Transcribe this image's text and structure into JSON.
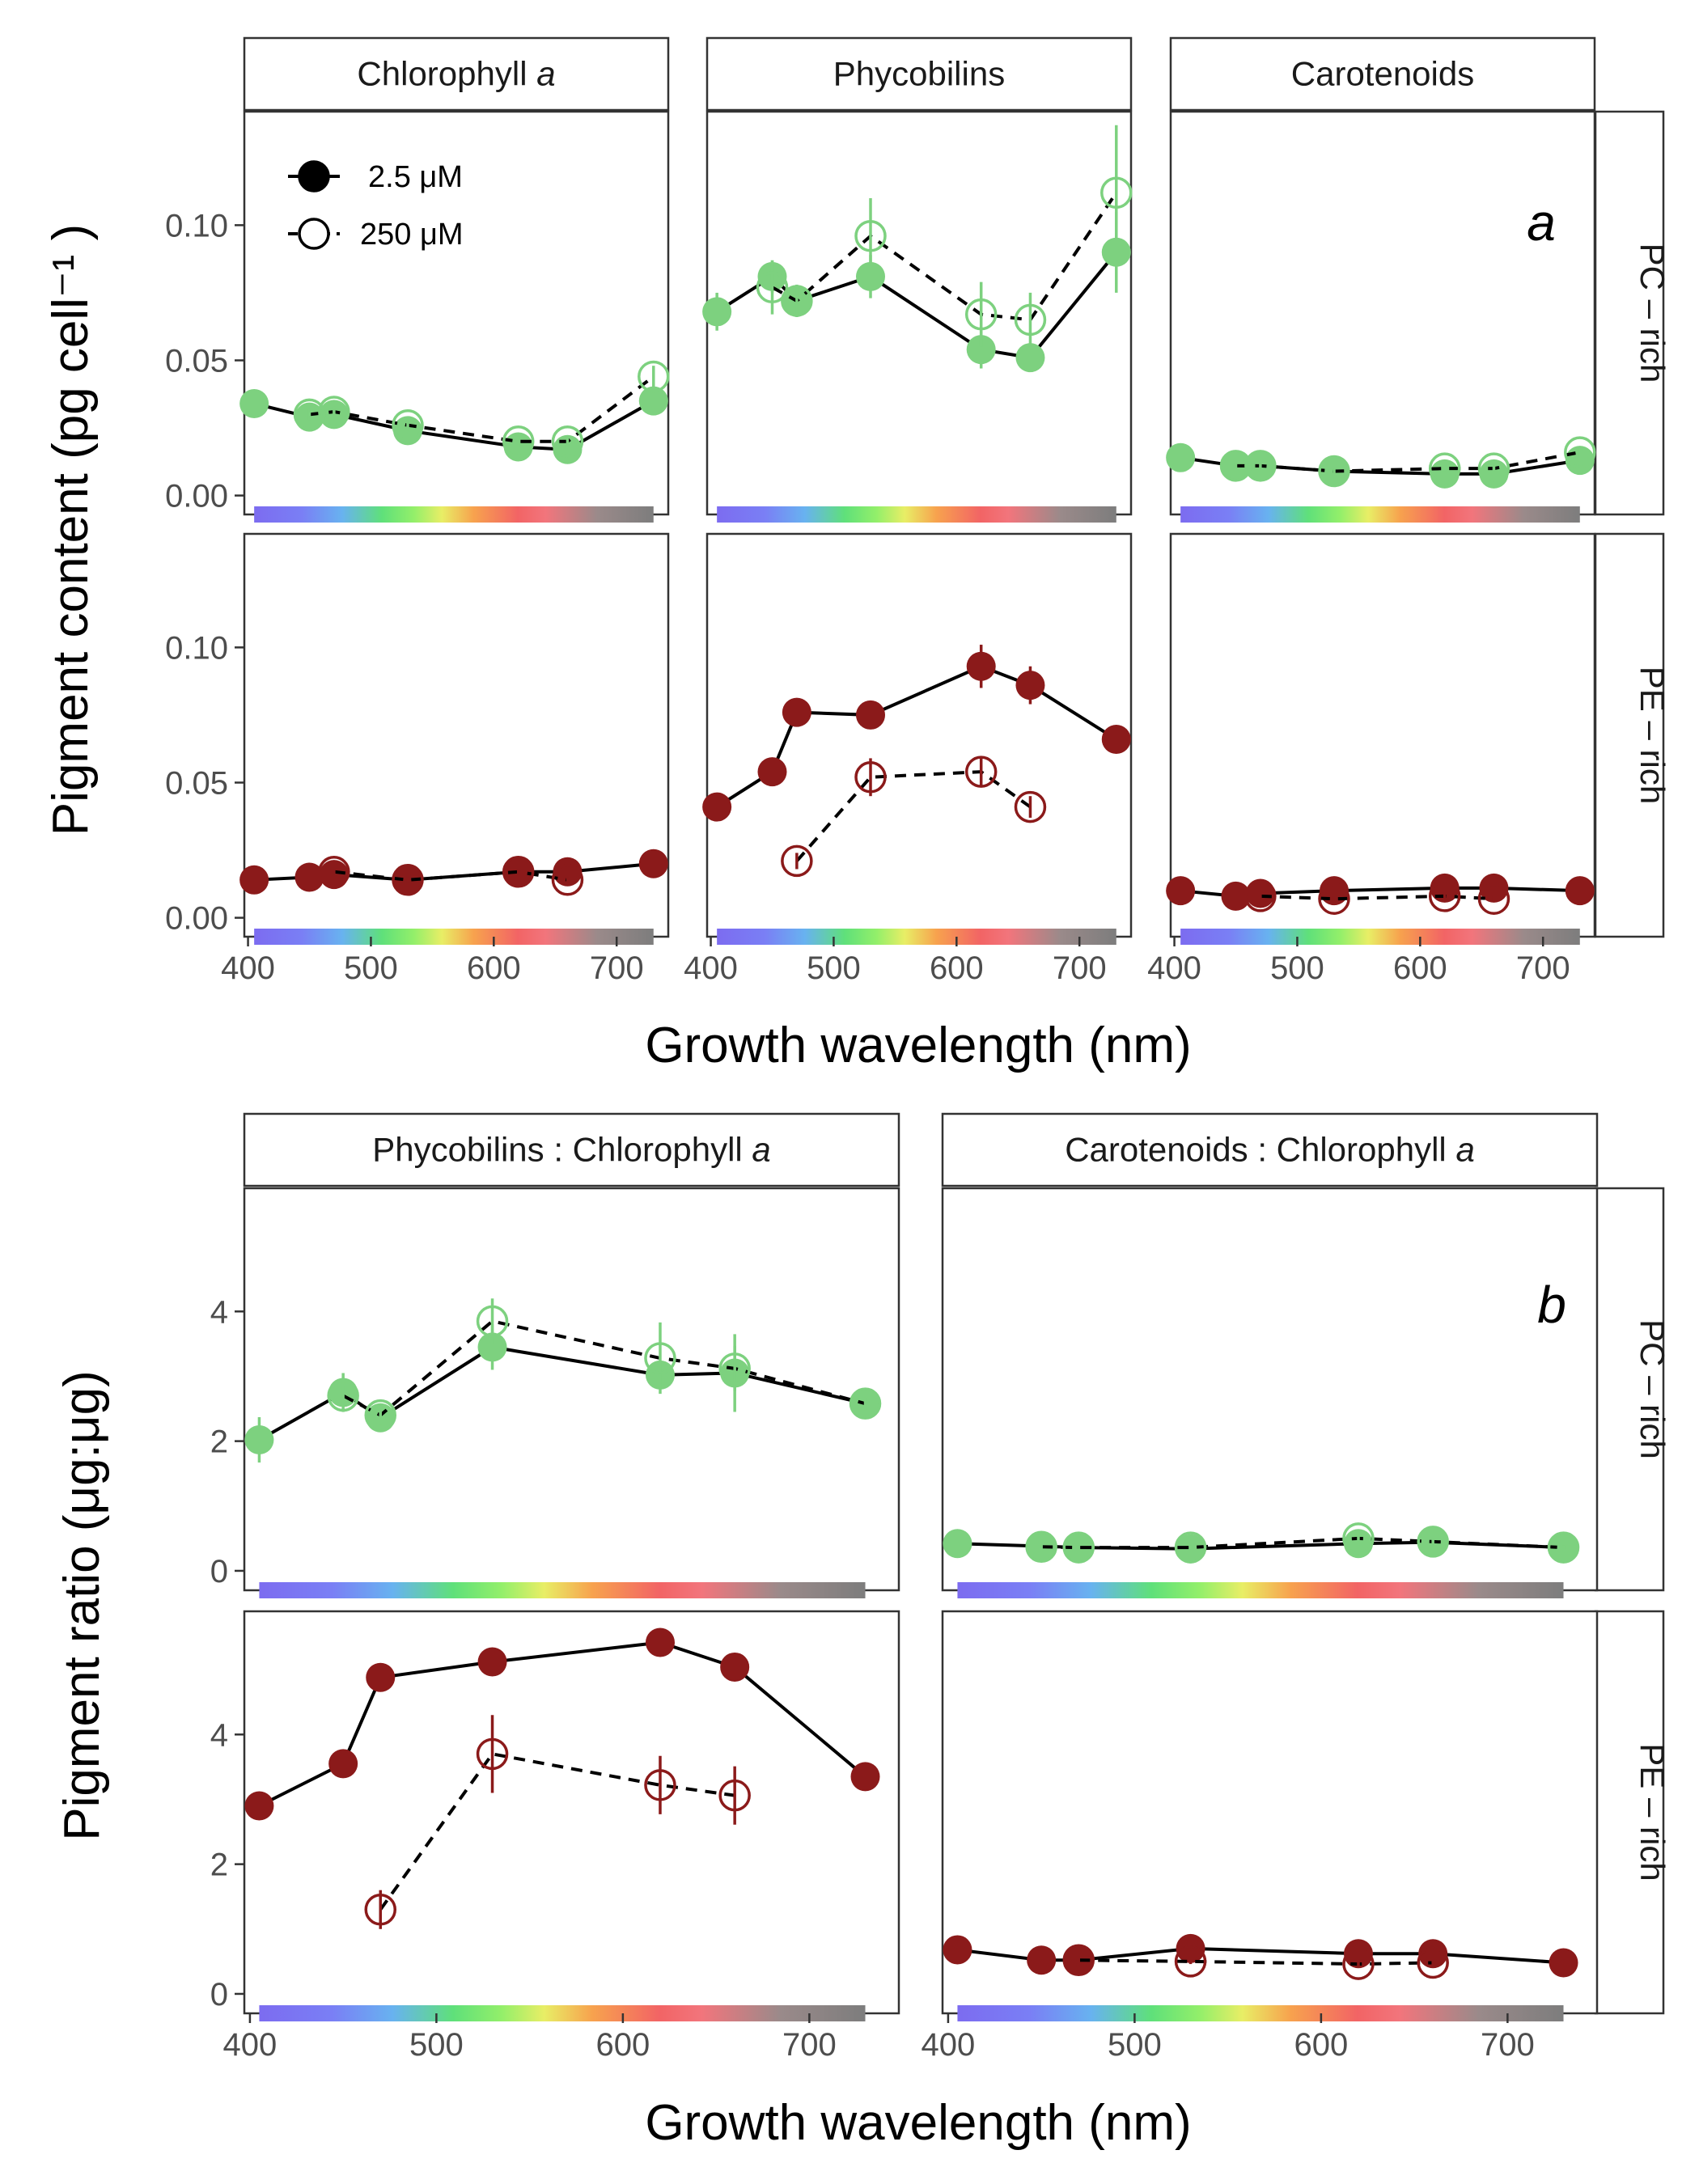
{
  "chart_data": [
    {
      "figure_part": "a",
      "type": "scatter",
      "subtype": "faceted point-and-line with error bars",
      "xlabel": "Growth wavelength (nm)",
      "ylabel": "Pigment content  (pg cell⁻¹ )",
      "x_ticks": [
        400,
        500,
        600,
        700
      ],
      "xlim": [
        397,
        742
      ],
      "ylim": [
        -0.007,
        0.142
      ],
      "y_ticks": [
        0.0,
        0.05,
        0.1
      ],
      "y_tick_labels": [
        "0.00",
        "0.05",
        "0.10"
      ],
      "columns": [
        "Chlorophyll a",
        "Phycobilins",
        "Carotenoids"
      ],
      "rows": [
        "PC – rich",
        "PE – rich"
      ],
      "panel_tag": "a",
      "legend": {
        "placement": "inside top-left of first panel",
        "entries": [
          {
            "label": "2.5 μM",
            "marker": "filled circle",
            "line": "solid"
          },
          {
            "label": "250 μM",
            "marker": "open circle",
            "line": "dashed"
          }
        ]
      },
      "colors": {
        "PC – rich": "#7dd17f",
        "PE – rich": "#8b1a1a"
      },
      "panels": [
        {
          "column": "Chlorophyll a",
          "row": "PC – rich",
          "series": [
            {
              "name": "2.5 μM",
              "x": [
                405,
                450,
                470,
                530,
                620,
                660,
                730
              ],
              "y": [
                0.034,
                0.029,
                0.03,
                0.024,
                0.018,
                0.017,
                0.035
              ],
              "err": [
                0.002,
                0.002,
                0.002,
                0.002,
                0.002,
                0.002,
                0.002
              ]
            },
            {
              "name": "250 μM",
              "x": [
                450,
                470,
                530,
                620,
                660,
                730
              ],
              "y": [
                0.03,
                0.031,
                0.026,
                0.02,
                0.02,
                0.044
              ],
              "err": [
                0.002,
                0.002,
                0.002,
                0.002,
                0.002,
                0.004
              ]
            }
          ]
        },
        {
          "column": "Phycobilins",
          "row": "PC – rich",
          "series": [
            {
              "name": "2.5 μM",
              "x": [
                405,
                450,
                470,
                530,
                620,
                660,
                730
              ],
              "y": [
                0.068,
                0.081,
                0.072,
                0.081,
                0.054,
                0.051,
                0.09
              ],
              "err": [
                0.007,
                0.006,
                0.005,
                0.008,
                0.007,
                0.005,
                0.015
              ]
            },
            {
              "name": "250 μM",
              "x": [
                450,
                470,
                530,
                620,
                660,
                730
              ],
              "y": [
                0.077,
                0.072,
                0.096,
                0.067,
                0.065,
                0.112
              ],
              "err": [
                0.01,
                0.006,
                0.014,
                0.012,
                0.01,
                0.025
              ]
            }
          ]
        },
        {
          "column": "Carotenoids",
          "row": "PC – rich",
          "series": [
            {
              "name": "2.5 μM",
              "x": [
                405,
                450,
                470,
                530,
                620,
                660,
                730
              ],
              "y": [
                0.014,
                0.011,
                0.011,
                0.009,
                0.008,
                0.008,
                0.013
              ],
              "err": [
                0.001,
                0.001,
                0.001,
                0.001,
                0.001,
                0.001,
                0.001
              ]
            },
            {
              "name": "250 μM",
              "x": [
                450,
                470,
                530,
                620,
                660,
                730
              ],
              "y": [
                0.011,
                0.011,
                0.009,
                0.01,
                0.01,
                0.016
              ],
              "err": [
                0.001,
                0.001,
                0.001,
                0.001,
                0.001,
                0.002
              ]
            }
          ]
        },
        {
          "column": "Chlorophyll a",
          "row": "PE – rich",
          "series": [
            {
              "name": "2.5 μM",
              "x": [
                405,
                450,
                470,
                530,
                620,
                660,
                730
              ],
              "y": [
                0.014,
                0.015,
                0.016,
                0.014,
                0.017,
                0.017,
                0.02
              ],
              "err": [
                0.001,
                0.001,
                0.001,
                0.001,
                0.001,
                0.001,
                0.001
              ]
            },
            {
              "name": "250 μM",
              "x": [
                470,
                530,
                620,
                660
              ],
              "y": [
                0.017,
                0.014,
                0.017,
                0.014
              ],
              "err": [
                0.001,
                0.001,
                0.001,
                0.001
              ]
            }
          ]
        },
        {
          "column": "Phycobilins",
          "row": "PE – rich",
          "series": [
            {
              "name": "2.5 μM",
              "x": [
                405,
                450,
                470,
                530,
                620,
                660,
                730
              ],
              "y": [
                0.041,
                0.054,
                0.076,
                0.075,
                0.093,
                0.086,
                0.066
              ],
              "err": [
                0.002,
                0.003,
                0.003,
                0.004,
                0.008,
                0.007,
                0.003
              ]
            },
            {
              "name": "250 μM",
              "x": [
                470,
                530,
                620,
                660
              ],
              "y": [
                0.021,
                0.052,
                0.054,
                0.041
              ],
              "err": [
                0.003,
                0.007,
                0.005,
                0.004
              ]
            }
          ]
        },
        {
          "column": "Carotenoids",
          "row": "PE – rich",
          "series": [
            {
              "name": "2.5 μM",
              "x": [
                405,
                450,
                470,
                530,
                620,
                660,
                730
              ],
              "y": [
                0.01,
                0.008,
                0.009,
                0.01,
                0.011,
                0.011,
                0.01
              ],
              "err": [
                0.001,
                0.001,
                0.001,
                0.001,
                0.001,
                0.001,
                0.001
              ]
            },
            {
              "name": "250 μM",
              "x": [
                470,
                530,
                620,
                660
              ],
              "y": [
                0.008,
                0.007,
                0.008,
                0.007
              ],
              "err": [
                0.001,
                0.001,
                0.001,
                0.001
              ]
            }
          ]
        }
      ]
    },
    {
      "figure_part": "b",
      "type": "scatter",
      "subtype": "faceted point-and-line with error bars",
      "xlabel": "Growth wavelength (nm)",
      "ylabel": "Pigment ratio (μg:μg)",
      "x_ticks": [
        400,
        500,
        600,
        700
      ],
      "xlim": [
        397,
        748
      ],
      "y_ticks": [
        0,
        2,
        4
      ],
      "rows": [
        "PC – rich",
        "PE – rich"
      ],
      "row_ylim": {
        "PC – rich": [
          -0.3,
          5.9
        ],
        "PE – rich": [
          -0.3,
          5.9
        ]
      },
      "columns": [
        "Phycobilins : Chlorophyll a",
        "Carotenoids : Chlorophyll a"
      ],
      "panel_tag": "b",
      "colors": {
        "PC – rich": "#7dd17f",
        "PE – rich": "#8b1a1a"
      },
      "panels": [
        {
          "column": "Phycobilins : Chlorophyll a",
          "row": "PC – rich",
          "series": [
            {
              "name": "2.5 μM",
              "x": [
                405,
                450,
                470,
                530,
                620,
                660,
                730
              ],
              "y": [
                2.02,
                2.75,
                2.36,
                3.45,
                3.02,
                3.05,
                2.58
              ],
              "err": [
                0.35,
                0.3,
                0.15,
                0.35,
                0.2,
                0.6,
                0.1
              ]
            },
            {
              "name": "250 μM",
              "x": [
                450,
                470,
                530,
                620,
                660,
                730
              ],
              "y": [
                2.7,
                2.4,
                3.85,
                3.28,
                3.12,
                2.58
              ],
              "err": [
                0.15,
                0.15,
                0.35,
                0.55,
                0.35,
                0.1
              ]
            }
          ]
        },
        {
          "column": "Carotenoids : Chlorophyll a",
          "row": "PC – rich",
          "series": [
            {
              "name": "2.5 μM",
              "x": [
                405,
                450,
                470,
                530,
                620,
                660,
                730
              ],
              "y": [
                0.42,
                0.38,
                0.36,
                0.34,
                0.42,
                0.44,
                0.36
              ],
              "err": [
                0.03,
                0.03,
                0.03,
                0.03,
                0.05,
                0.05,
                0.03
              ]
            },
            {
              "name": "250 μM",
              "x": [
                450,
                470,
                530,
                620,
                660,
                730
              ],
              "y": [
                0.37,
                0.36,
                0.36,
                0.5,
                0.45,
                0.36
              ],
              "err": [
                0.03,
                0.03,
                0.03,
                0.05,
                0.05,
                0.03
              ]
            }
          ]
        },
        {
          "column": "Phycobilins : Chlorophyll a",
          "row": "PE – rich",
          "series": [
            {
              "name": "2.5 μM",
              "x": [
                405,
                450,
                470,
                530,
                620,
                660,
                730
              ],
              "y": [
                2.9,
                3.55,
                4.88,
                5.12,
                5.42,
                5.04,
                3.35
              ],
              "err": [
                0.1,
                0.1,
                0.1,
                0.1,
                0.1,
                0.1,
                0.1
              ]
            },
            {
              "name": "250 μM",
              "x": [
                470,
                530,
                620,
                660
              ],
              "y": [
                1.3,
                3.7,
                3.22,
                3.06
              ],
              "err": [
                0.3,
                0.6,
                0.45,
                0.45
              ]
            }
          ]
        },
        {
          "column": "Carotenoids : Chlorophyll a",
          "row": "PE – rich",
          "series": [
            {
              "name": "2.5 μM",
              "x": [
                405,
                450,
                470,
                530,
                620,
                660,
                730
              ],
              "y": [
                0.68,
                0.52,
                0.52,
                0.7,
                0.62,
                0.62,
                0.48
              ],
              "err": [
                0.03,
                0.03,
                0.03,
                0.05,
                0.05,
                0.05,
                0.03
              ]
            },
            {
              "name": "250 μM",
              "x": [
                470,
                530,
                620,
                660
              ],
              "y": [
                0.52,
                0.5,
                0.46,
                0.48
              ],
              "err": [
                0.03,
                0.04,
                0.04,
                0.04
              ]
            }
          ]
        }
      ]
    }
  ]
}
